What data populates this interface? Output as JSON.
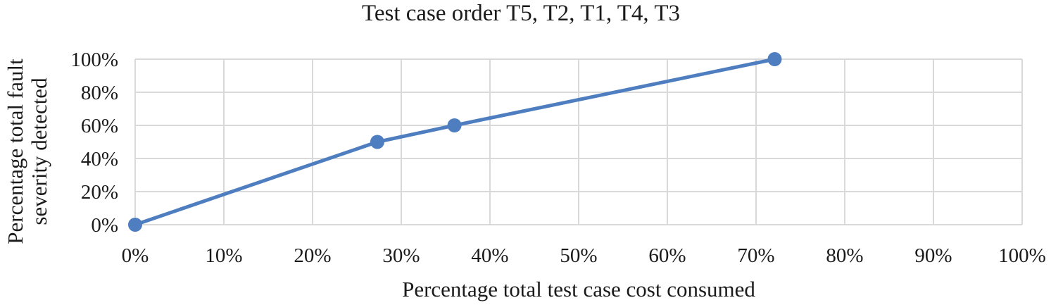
{
  "chart_data": {
    "type": "line",
    "title": "Test case order T5, T2, T1, T4, T3",
    "xlabel": "Percentage total test case cost consumed",
    "ylabel_lines": [
      "Percentage total fault",
      "severity detected"
    ],
    "xlim": [
      0,
      100
    ],
    "ylim": [
      0,
      100
    ],
    "x_ticks": [
      0,
      10,
      20,
      30,
      40,
      50,
      60,
      70,
      80,
      90,
      100
    ],
    "x_tick_labels": [
      "0%",
      "10%",
      "20%",
      "30%",
      "40%",
      "50%",
      "60%",
      "70%",
      "80%",
      "90%",
      "100%"
    ],
    "y_ticks": [
      0,
      20,
      40,
      60,
      80,
      100
    ],
    "y_tick_labels": [
      "0%",
      "20%",
      "40%",
      "60%",
      "80%",
      "100%"
    ],
    "grid": true,
    "legend": "none",
    "series": [
      {
        "x": [
          0,
          27.3,
          36,
          72.1
        ],
        "y": [
          0,
          50,
          60,
          100
        ],
        "color": "#4e7ebf"
      }
    ]
  }
}
